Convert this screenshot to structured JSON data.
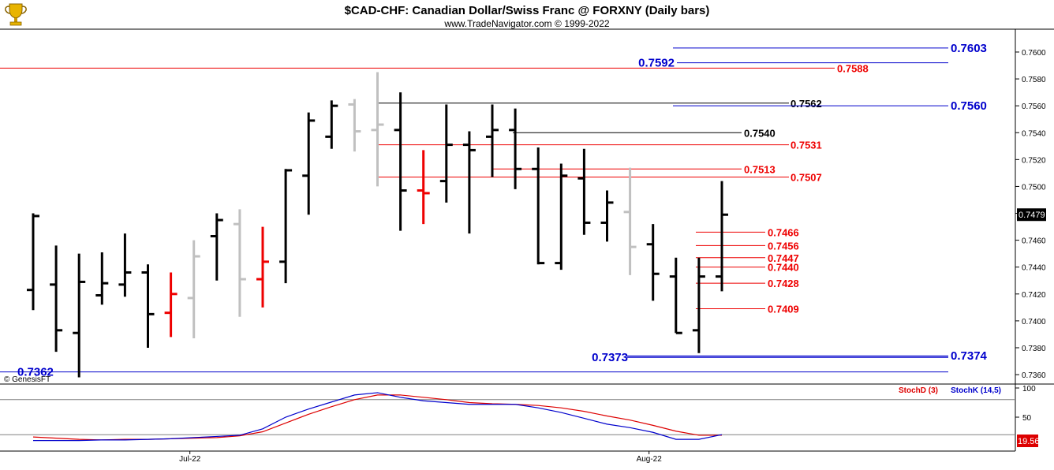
{
  "header": {
    "title": "$CAD-CHF:  Canadian Dollar/Swiss Franc @ FORXNY  (Daily bars)",
    "subtitle": "www.TradeNavigator.com © 1999-2022"
  },
  "watermark": "© GenesisFT",
  "logo": "trophy-icon",
  "colors": {
    "bar_up": "#000000",
    "bar_gray": "#c0c0c0",
    "bar_red": "#ee0000",
    "level_blue": "#0000cc",
    "level_red": "#ee0000",
    "level_black": "#000000",
    "stoch_d": "#dd0000",
    "stoch_k": "#0000cc",
    "last_price_bg": "#000000",
    "stoch_value_bg": "#dd0000"
  },
  "chart_data": [
    {
      "type": "ohlc",
      "title": "$CAD-CHF:  Canadian Dollar/Swiss Franc @ FORXNY  (Daily bars)",
      "ylim": [
        0.7353,
        0.7617
      ],
      "y_ticks": [
        "0.7600",
        "0.7580",
        "0.7560",
        "0.7540",
        "0.7520",
        "0.7500",
        "0.7480",
        "0.7460",
        "0.7440",
        "0.7420",
        "0.7400",
        "0.7380",
        "0.7360"
      ],
      "x_ticks": [
        {
          "label": "Jul-22",
          "bar": 7
        },
        {
          "label": "Aug-22",
          "bar": 27
        }
      ],
      "last_price": "0.7479",
      "bars": [
        {
          "o": 0.7423,
          "h": 0.748,
          "l": 0.7408,
          "c": 0.7478,
          "color": "black"
        },
        {
          "o": 0.7427,
          "h": 0.7456,
          "l": 0.7377,
          "c": 0.7393,
          "color": "black"
        },
        {
          "o": 0.7391,
          "h": 0.745,
          "l": 0.7358,
          "c": 0.7429,
          "color": "black"
        },
        {
          "o": 0.7419,
          "h": 0.7451,
          "l": 0.7412,
          "c": 0.7428,
          "color": "black"
        },
        {
          "o": 0.7427,
          "h": 0.7465,
          "l": 0.7418,
          "c": 0.7436,
          "color": "black"
        },
        {
          "o": 0.7436,
          "h": 0.7442,
          "l": 0.738,
          "c": 0.7405,
          "color": "black"
        },
        {
          "o": 0.7406,
          "h": 0.7436,
          "l": 0.7388,
          "c": 0.742,
          "color": "red"
        },
        {
          "o": 0.7417,
          "h": 0.746,
          "l": 0.7387,
          "c": 0.7448,
          "color": "gray"
        },
        {
          "o": 0.7463,
          "h": 0.748,
          "l": 0.743,
          "c": 0.7475,
          "color": "black"
        },
        {
          "o": 0.7472,
          "h": 0.7483,
          "l": 0.7403,
          "c": 0.7431,
          "color": "gray"
        },
        {
          "o": 0.7431,
          "h": 0.747,
          "l": 0.741,
          "c": 0.7444,
          "color": "red"
        },
        {
          "o": 0.7444,
          "h": 0.7513,
          "l": 0.7428,
          "c": 0.7512,
          "color": "black"
        },
        {
          "o": 0.7508,
          "h": 0.7555,
          "l": 0.7479,
          "c": 0.7549,
          "color": "black"
        },
        {
          "o": 0.7537,
          "h": 0.7564,
          "l": 0.7528,
          "c": 0.756,
          "color": "black"
        },
        {
          "o": 0.7561,
          "h": 0.7565,
          "l": 0.7526,
          "c": 0.7541,
          "color": "gray"
        },
        {
          "o": 0.7542,
          "h": 0.7585,
          "l": 0.75,
          "c": 0.7546,
          "color": "gray"
        },
        {
          "o": 0.7542,
          "h": 0.757,
          "l": 0.7467,
          "c": 0.7497,
          "color": "black"
        },
        {
          "o": 0.7497,
          "h": 0.7527,
          "l": 0.7472,
          "c": 0.7495,
          "color": "red"
        },
        {
          "o": 0.7504,
          "h": 0.7561,
          "l": 0.7488,
          "c": 0.7531,
          "color": "black"
        },
        {
          "o": 0.7531,
          "h": 0.7541,
          "l": 0.7465,
          "c": 0.7527,
          "color": "black"
        },
        {
          "o": 0.7537,
          "h": 0.7561,
          "l": 0.7507,
          "c": 0.7542,
          "color": "black"
        },
        {
          "o": 0.7542,
          "h": 0.7558,
          "l": 0.7498,
          "c": 0.7513,
          "color": "black"
        },
        {
          "o": 0.7513,
          "h": 0.7529,
          "l": 0.7442,
          "c": 0.7443,
          "color": "black"
        },
        {
          "o": 0.7443,
          "h": 0.7517,
          "l": 0.7438,
          "c": 0.7508,
          "color": "black"
        },
        {
          "o": 0.7506,
          "h": 0.7528,
          "l": 0.7464,
          "c": 0.7473,
          "color": "black"
        },
        {
          "o": 0.7473,
          "h": 0.7497,
          "l": 0.7459,
          "c": 0.7488,
          "color": "black"
        },
        {
          "o": 0.7481,
          "h": 0.7514,
          "l": 0.7434,
          "c": 0.7455,
          "color": "gray"
        },
        {
          "o": 0.7457,
          "h": 0.7472,
          "l": 0.7415,
          "c": 0.7435,
          "color": "black"
        },
        {
          "o": 0.7433,
          "h": 0.7447,
          "l": 0.7391,
          "c": 0.7391,
          "color": "black"
        },
        {
          "o": 0.7393,
          "h": 0.7447,
          "l": 0.7376,
          "c": 0.7433,
          "color": "black"
        },
        {
          "o": 0.7433,
          "h": 0.7504,
          "l": 0.7422,
          "c": 0.7479,
          "color": "black"
        }
      ],
      "levels": [
        {
          "label": "0.7603",
          "value": 0.7603,
          "color": "blue",
          "x_from": 0.753,
          "label_side": "right-far"
        },
        {
          "label": "0.7592",
          "value": 0.7592,
          "color": "blue",
          "x_from": 0.753,
          "label_side": "left-mid"
        },
        {
          "label": "0.7588",
          "value": 0.7588,
          "color": "red",
          "label_side": "right-near"
        },
        {
          "label": "0.7562",
          "value": 0.7562,
          "color": "black",
          "label_side": "right-near"
        },
        {
          "label": "0.7560",
          "value": 0.756,
          "color": "blue",
          "label_side": "right-far"
        },
        {
          "label": "0.7540",
          "value": 0.754,
          "color": "black",
          "label_side": "right-near"
        },
        {
          "label": "0.7531",
          "value": 0.7531,
          "color": "red",
          "label_side": "right-near"
        },
        {
          "label": "0.7513",
          "value": 0.7513,
          "color": "red",
          "label_side": "right-near"
        },
        {
          "label": "0.7507",
          "value": 0.7507,
          "color": "red",
          "label_side": "right-near"
        },
        {
          "label": "0.7466",
          "value": 0.7466,
          "color": "red",
          "label_side": "right-near"
        },
        {
          "label": "0.7456",
          "value": 0.7456,
          "color": "red",
          "label_side": "right-near"
        },
        {
          "label": "0.7447",
          "value": 0.7447,
          "color": "red",
          "label_side": "right-near"
        },
        {
          "label": "0.7440",
          "value": 0.744,
          "color": "red",
          "label_side": "right-near"
        },
        {
          "label": "0.7428",
          "value": 0.7428,
          "color": "red",
          "label_side": "right-near"
        },
        {
          "label": "0.7409",
          "value": 0.7409,
          "color": "red",
          "label_side": "right-near"
        },
        {
          "label": "0.7374",
          "value": 0.7374,
          "color": "blue",
          "label_side": "right-far"
        },
        {
          "label": "0.7373",
          "value": 0.7373,
          "color": "blue",
          "label_side": "left-mid"
        },
        {
          "label": "0.7362",
          "value": 0.7362,
          "color": "blue",
          "label_side": "left"
        }
      ]
    },
    {
      "type": "line",
      "title": "",
      "ylim": [
        0,
        100
      ],
      "y_ticks": [
        "100",
        "50"
      ],
      "reference_lines": [
        80,
        20
      ],
      "last_value": "19.56",
      "series": [
        {
          "name": "StochD (3)",
          "color": "red",
          "values": [
            16,
            14,
            12,
            11,
            12,
            12,
            13,
            14,
            15,
            18,
            25,
            40,
            55,
            68,
            80,
            88,
            88,
            84,
            80,
            75,
            73,
            72,
            70,
            66,
            60,
            52,
            45,
            36,
            26,
            19,
            19
          ]
        },
        {
          "name": "StochK (14,5)",
          "color": "blue",
          "values": [
            10,
            10,
            10,
            11,
            11,
            12,
            13,
            15,
            17,
            19,
            30,
            50,
            64,
            76,
            88,
            92,
            84,
            78,
            75,
            72,
            72,
            72,
            66,
            58,
            48,
            38,
            32,
            24,
            12,
            12,
            20
          ]
        }
      ]
    }
  ]
}
